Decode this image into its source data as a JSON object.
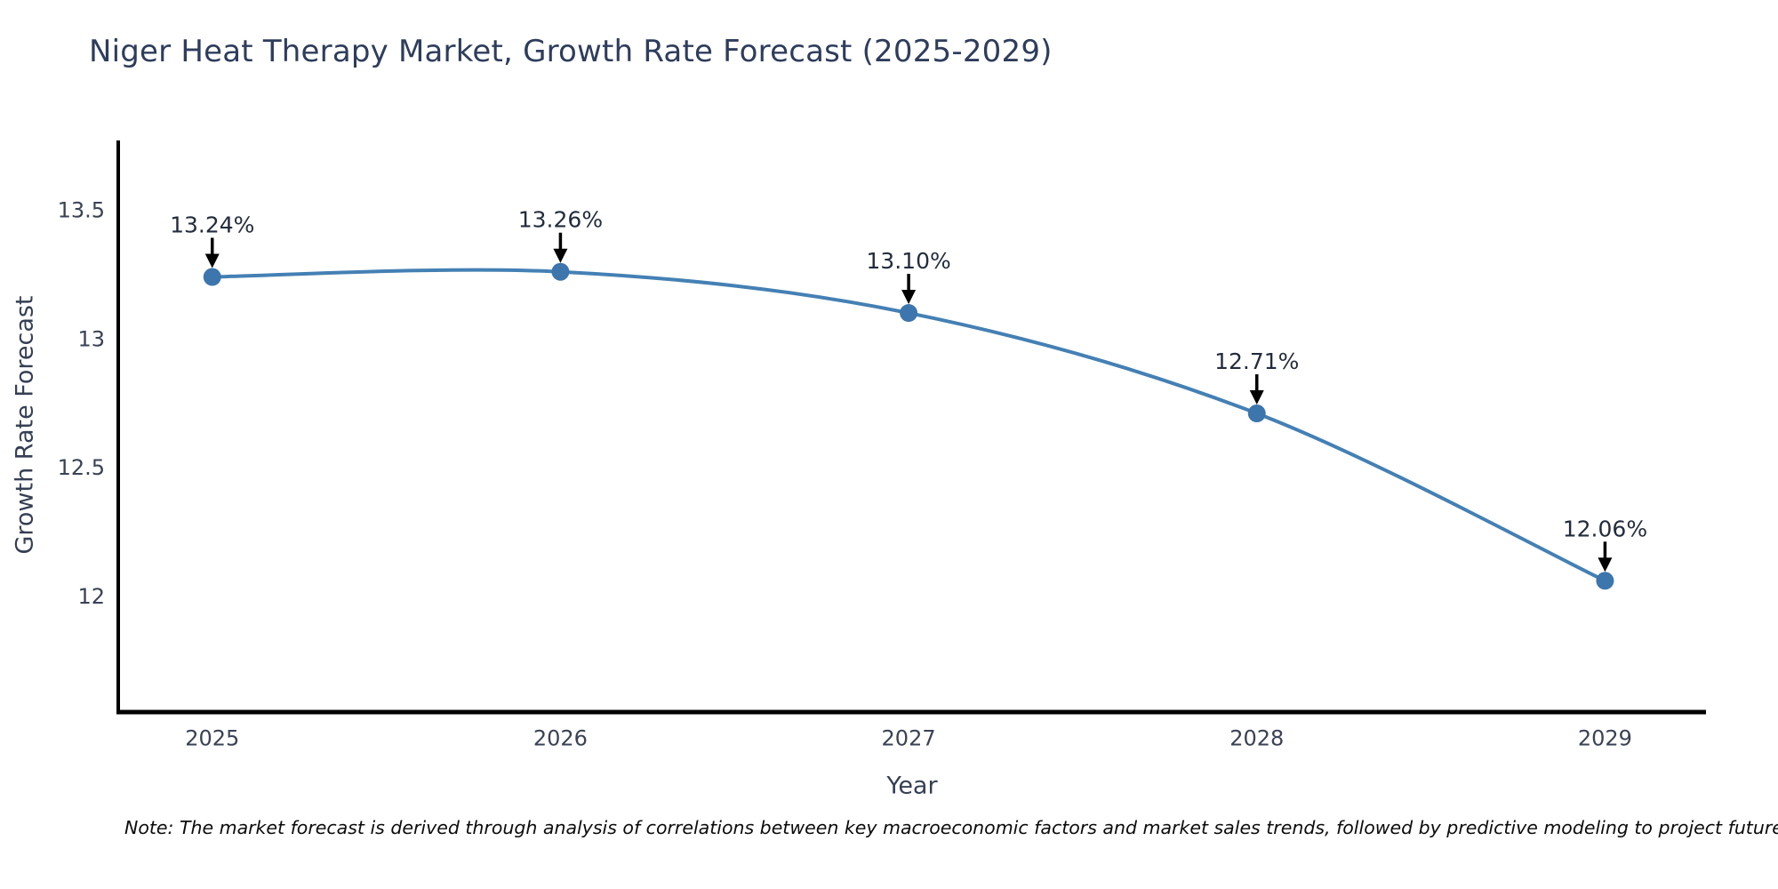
{
  "note": "Note: The market forecast is derived through analysis of correlations between key macroeconomic factors and market sales trends, followed by predictive modeling to project future sal",
  "chart_data": {
    "type": "line",
    "title": "Niger Heat Therapy Market, Growth Rate Forecast (2025-2029)",
    "xlabel": "Year",
    "ylabel": "Growth Rate Forecast",
    "categories": [
      2025,
      2026,
      2027,
      2028,
      2029
    ],
    "values": [
      13.24,
      13.26,
      13.1,
      12.71,
      12.06
    ],
    "point_labels": [
      "13.24%",
      "13.26%",
      "13.10%",
      "12.71%",
      "12.06%"
    ],
    "yticks": {
      "values": [
        13.5,
        13.0,
        12.5,
        12.0
      ],
      "labels": [
        "13.5",
        "13",
        "12.5",
        "12"
      ]
    },
    "xticks": {
      "values": [
        2025,
        2026,
        2027,
        2028,
        2029
      ],
      "labels": [
        "2025",
        "2026",
        "2027",
        "2028",
        "2029"
      ]
    },
    "xlim": [
      2024.73,
      2029.29
    ],
    "ylim": [
      11.55,
      13.77
    ],
    "grid": false,
    "legend": "none",
    "line_shape": "spline",
    "colors": {
      "line": "#4480b4",
      "marker": "#3d75ad",
      "axis": "#000000",
      "tick_label": "#3a4254",
      "annotation_text": "#232c3d",
      "annotation_arrow": "#000000"
    }
  }
}
